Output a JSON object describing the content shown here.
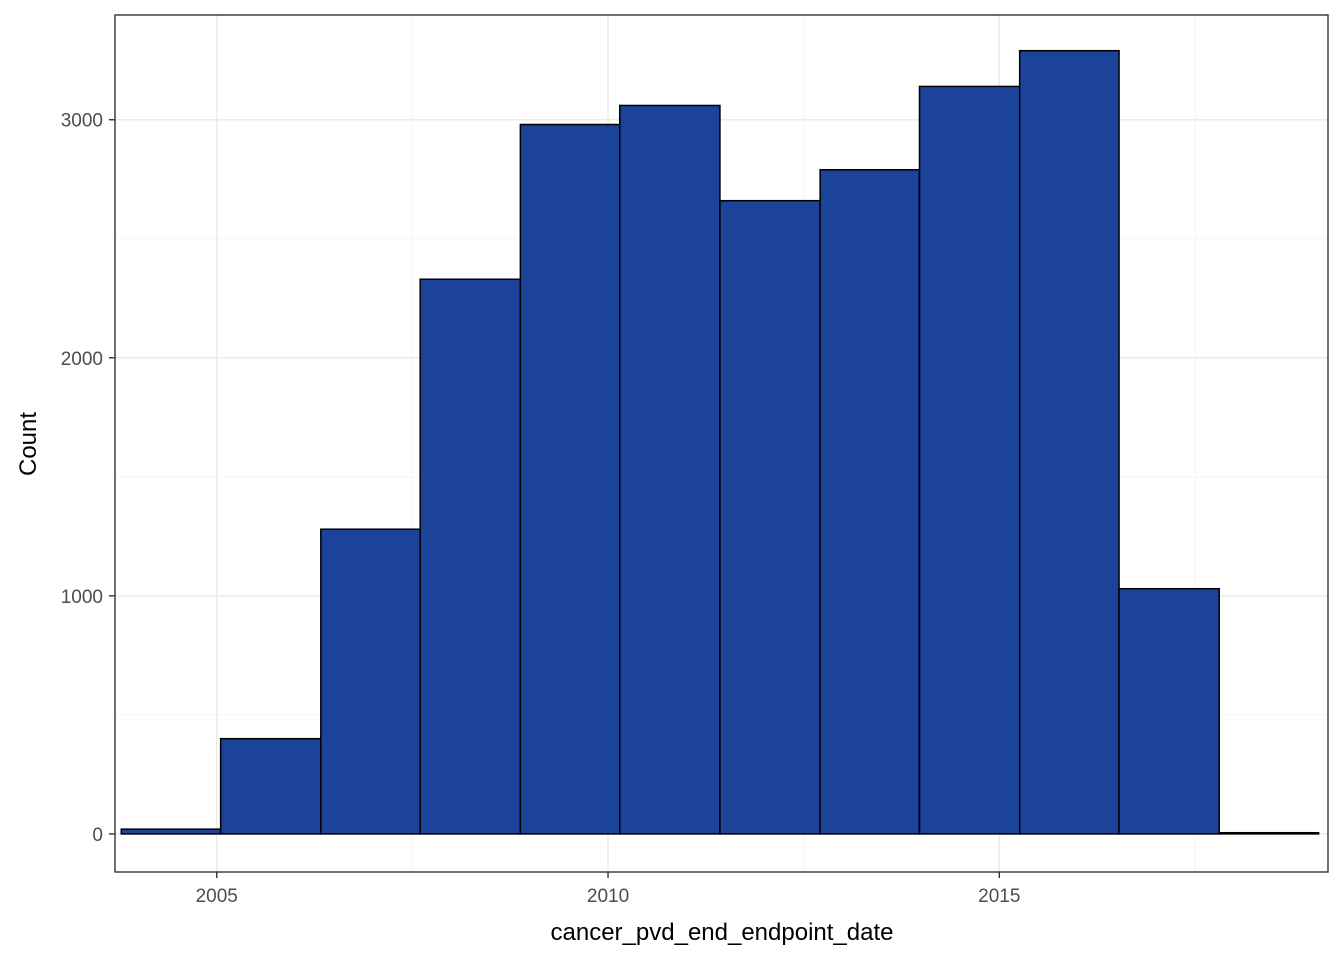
{
  "chart_data": {
    "type": "bar",
    "subtype": "histogram",
    "title": "",
    "xlabel": "cancer_pvd_end_endpoint_date",
    "ylabel": "Count",
    "x_ticks": [
      2005,
      2010,
      2015
    ],
    "y_ticks": [
      0,
      1000,
      2000,
      3000
    ],
    "xlim": [
      2003.7,
      2019.2
    ],
    "ylim": [
      -160,
      3440
    ],
    "grid": true,
    "legend": "none",
    "bar_fill": "#1a4399",
    "bar_stroke": "#000000",
    "panel_border": "#333333",
    "grid_major": "#ebebeb",
    "grid_minor": "#f5f5f5",
    "bins": [
      {
        "x0": 2003.78,
        "x1": 2005.05,
        "count": 20
      },
      {
        "x0": 2005.05,
        "x1": 2006.33,
        "count": 400
      },
      {
        "x0": 2006.33,
        "x1": 2007.6,
        "count": 1280
      },
      {
        "x0": 2007.6,
        "x1": 2008.88,
        "count": 2330
      },
      {
        "x0": 2008.88,
        "x1": 2010.15,
        "count": 2980
      },
      {
        "x0": 2010.15,
        "x1": 2011.43,
        "count": 3060
      },
      {
        "x0": 2011.43,
        "x1": 2012.71,
        "count": 2660
      },
      {
        "x0": 2012.71,
        "x1": 2013.98,
        "count": 2790
      },
      {
        "x0": 2013.98,
        "x1": 2015.26,
        "count": 3140
      },
      {
        "x0": 2015.26,
        "x1": 2016.53,
        "count": 3290
      },
      {
        "x0": 2016.53,
        "x1": 2017.81,
        "count": 1030
      },
      {
        "x0": 2017.81,
        "x1": 2019.08,
        "count": 5
      }
    ]
  }
}
